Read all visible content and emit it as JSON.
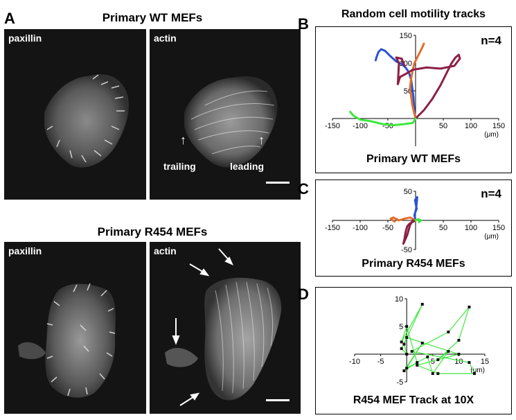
{
  "panels": {
    "A": {
      "letter": "A",
      "wt": {
        "title": "Primary WT MEFs",
        "left_label": "paxillin",
        "right_label": "actin",
        "trailing": "trailing",
        "leading": "leading"
      },
      "r454": {
        "title": "Primary R454 MEFs",
        "left_label": "paxillin",
        "right_label": "actin"
      }
    },
    "B": {
      "letter": "B",
      "title": "Random cell motility tracks",
      "n": "n=4",
      "caption": "Primary WT MEFs",
      "unit": "(μm)"
    },
    "C": {
      "letter": "C",
      "n": "n=4",
      "caption": "Primary R454  MEFs",
      "unit": "(μm)"
    },
    "D": {
      "letter": "D",
      "caption": "R454 MEF Track at 10X",
      "unit": "(μm)"
    }
  },
  "chart_data": [
    {
      "id": "B",
      "type": "line",
      "title": "Random cell motility tracks",
      "xlim": [
        -150,
        150
      ],
      "ylim": [
        -50,
        150
      ],
      "x_ticks": [
        -150,
        -100,
        -50,
        50,
        100,
        150
      ],
      "y_ticks": [
        150,
        100,
        50
      ],
      "x_tick_labels": [
        "-150",
        "-100",
        "-50",
        "50",
        "100",
        "150"
      ],
      "y_tick_labels": [
        "150",
        "100",
        "50"
      ],
      "series": [
        {
          "color": "#2a52d6",
          "points": [
            [
              0,
              0
            ],
            [
              -2,
              12
            ],
            [
              -3,
              25
            ],
            [
              -4,
              40
            ],
            [
              -6,
              55
            ],
            [
              -8,
              70
            ],
            [
              -12,
              83
            ],
            [
              -18,
              92
            ],
            [
              -25,
              98
            ],
            [
              -35,
              103
            ],
            [
              -45,
              112
            ],
            [
              -55,
              122
            ],
            [
              -62,
              125
            ],
            [
              -67,
              120
            ],
            [
              -70,
              112
            ],
            [
              -72,
              105
            ]
          ]
        },
        {
          "color": "#e36e28",
          "points": [
            [
              0,
              0
            ],
            [
              -3,
              12
            ],
            [
              -6,
              25
            ],
            [
              -8,
              40
            ],
            [
              -10,
              55
            ],
            [
              -8,
              72
            ],
            [
              -5,
              88
            ],
            [
              -2,
              100
            ],
            [
              3,
              110
            ],
            [
              8,
              120
            ],
            [
              12,
              128
            ],
            [
              15,
              135
            ]
          ]
        },
        {
          "color": "#8c1f45",
          "points": [
            [
              0,
              0
            ],
            [
              15,
              15
            ],
            [
              30,
              35
            ],
            [
              45,
              60
            ],
            [
              55,
              80
            ],
            [
              65,
              100
            ],
            [
              72,
              110
            ],
            [
              78,
              115
            ],
            [
              80,
              108
            ],
            [
              70,
              95
            ],
            [
              45,
              90
            ],
            [
              20,
              92
            ],
            [
              -5,
              88
            ],
            [
              -15,
              82
            ],
            [
              -28,
              75
            ],
            [
              -32,
              62
            ],
            [
              -30,
              100
            ],
            [
              -35,
              110
            ],
            [
              -25,
              108
            ],
            [
              -20,
              95
            ]
          ]
        },
        {
          "color": "#3de83d",
          "points": [
            [
              0,
              0
            ],
            [
              -5,
              -8
            ],
            [
              -20,
              -10
            ],
            [
              -40,
              -12
            ],
            [
              -60,
              -10
            ],
            [
              -80,
              -5
            ],
            [
              -100,
              -2
            ],
            [
              -112,
              5
            ],
            [
              -118,
              12
            ]
          ]
        }
      ]
    },
    {
      "id": "C",
      "type": "line",
      "xlim": [
        -150,
        150
      ],
      "ylim": [
        -50,
        50
      ],
      "x_ticks": [
        -150,
        -100,
        -50,
        50,
        100,
        150
      ],
      "y_ticks": [
        50,
        -50
      ],
      "x_tick_labels": [
        "-150",
        "-100",
        "-50",
        "50",
        "100",
        "150"
      ],
      "y_tick_labels": [
        "50",
        "-50"
      ],
      "series": [
        {
          "color": "#2a52d6",
          "points": [
            [
              0,
              0
            ],
            [
              -2,
              10
            ],
            [
              2,
              20
            ],
            [
              0,
              30
            ],
            [
              -1,
              35
            ],
            [
              3,
              40
            ],
            [
              1,
              20
            ],
            [
              -2,
              8
            ],
            [
              0,
              0
            ]
          ]
        },
        {
          "color": "#e36e28",
          "points": [
            [
              0,
              0
            ],
            [
              -10,
              5
            ],
            [
              -20,
              3
            ],
            [
              -30,
              0
            ],
            [
              -40,
              5
            ],
            [
              -45,
              3
            ],
            [
              -38,
              -2
            ]
          ]
        },
        {
          "color": "#8c1f45",
          "points": [
            [
              0,
              0
            ],
            [
              -10,
              -5
            ],
            [
              -15,
              -10
            ],
            [
              -18,
              -20
            ],
            [
              -20,
              -32
            ],
            [
              -22,
              -40
            ],
            [
              -15,
              -25
            ],
            [
              -10,
              -8
            ],
            [
              -5,
              0
            ]
          ]
        },
        {
          "color": "#3de83d",
          "points": [
            [
              0,
              0
            ],
            [
              5,
              2
            ],
            [
              10,
              0
            ],
            [
              6,
              -3
            ]
          ]
        }
      ]
    },
    {
      "id": "D",
      "type": "line",
      "xlim": [
        -10,
        15
      ],
      "ylim": [
        -5,
        10
      ],
      "x_ticks": [
        -10,
        -5,
        5,
        10,
        15
      ],
      "y_ticks": [
        10,
        5,
        -5
      ],
      "x_tick_labels": [
        "-10",
        "-5",
        "5",
        "10",
        "15"
      ],
      "y_tick_labels": [
        "10",
        "5",
        "-5"
      ],
      "series": [
        {
          "color": "#3de83d",
          "points": [
            [
              0,
              0
            ],
            [
              -0.5,
              1.8
            ],
            [
              3,
              9
            ],
            [
              -1,
              2.2
            ],
            [
              0,
              5
            ],
            [
              2,
              -1.5
            ],
            [
              -0.5,
              -3
            ],
            [
              3,
              2
            ],
            [
              0,
              -2.5
            ],
            [
              4,
              -0.5
            ],
            [
              5,
              -3.5
            ],
            [
              8,
              0.5
            ],
            [
              6,
              -1
            ],
            [
              10,
              2.5
            ],
            [
              12,
              8.5
            ],
            [
              8,
              4
            ],
            [
              1,
              0.5
            ],
            [
              12,
              -1.5
            ],
            [
              13,
              -3.5
            ],
            [
              6,
              -3.5
            ],
            [
              2,
              -2
            ],
            [
              10,
              0
            ],
            [
              0,
              3
            ],
            [
              -1,
              1
            ],
            [
              0,
              0
            ]
          ]
        }
      ]
    }
  ]
}
